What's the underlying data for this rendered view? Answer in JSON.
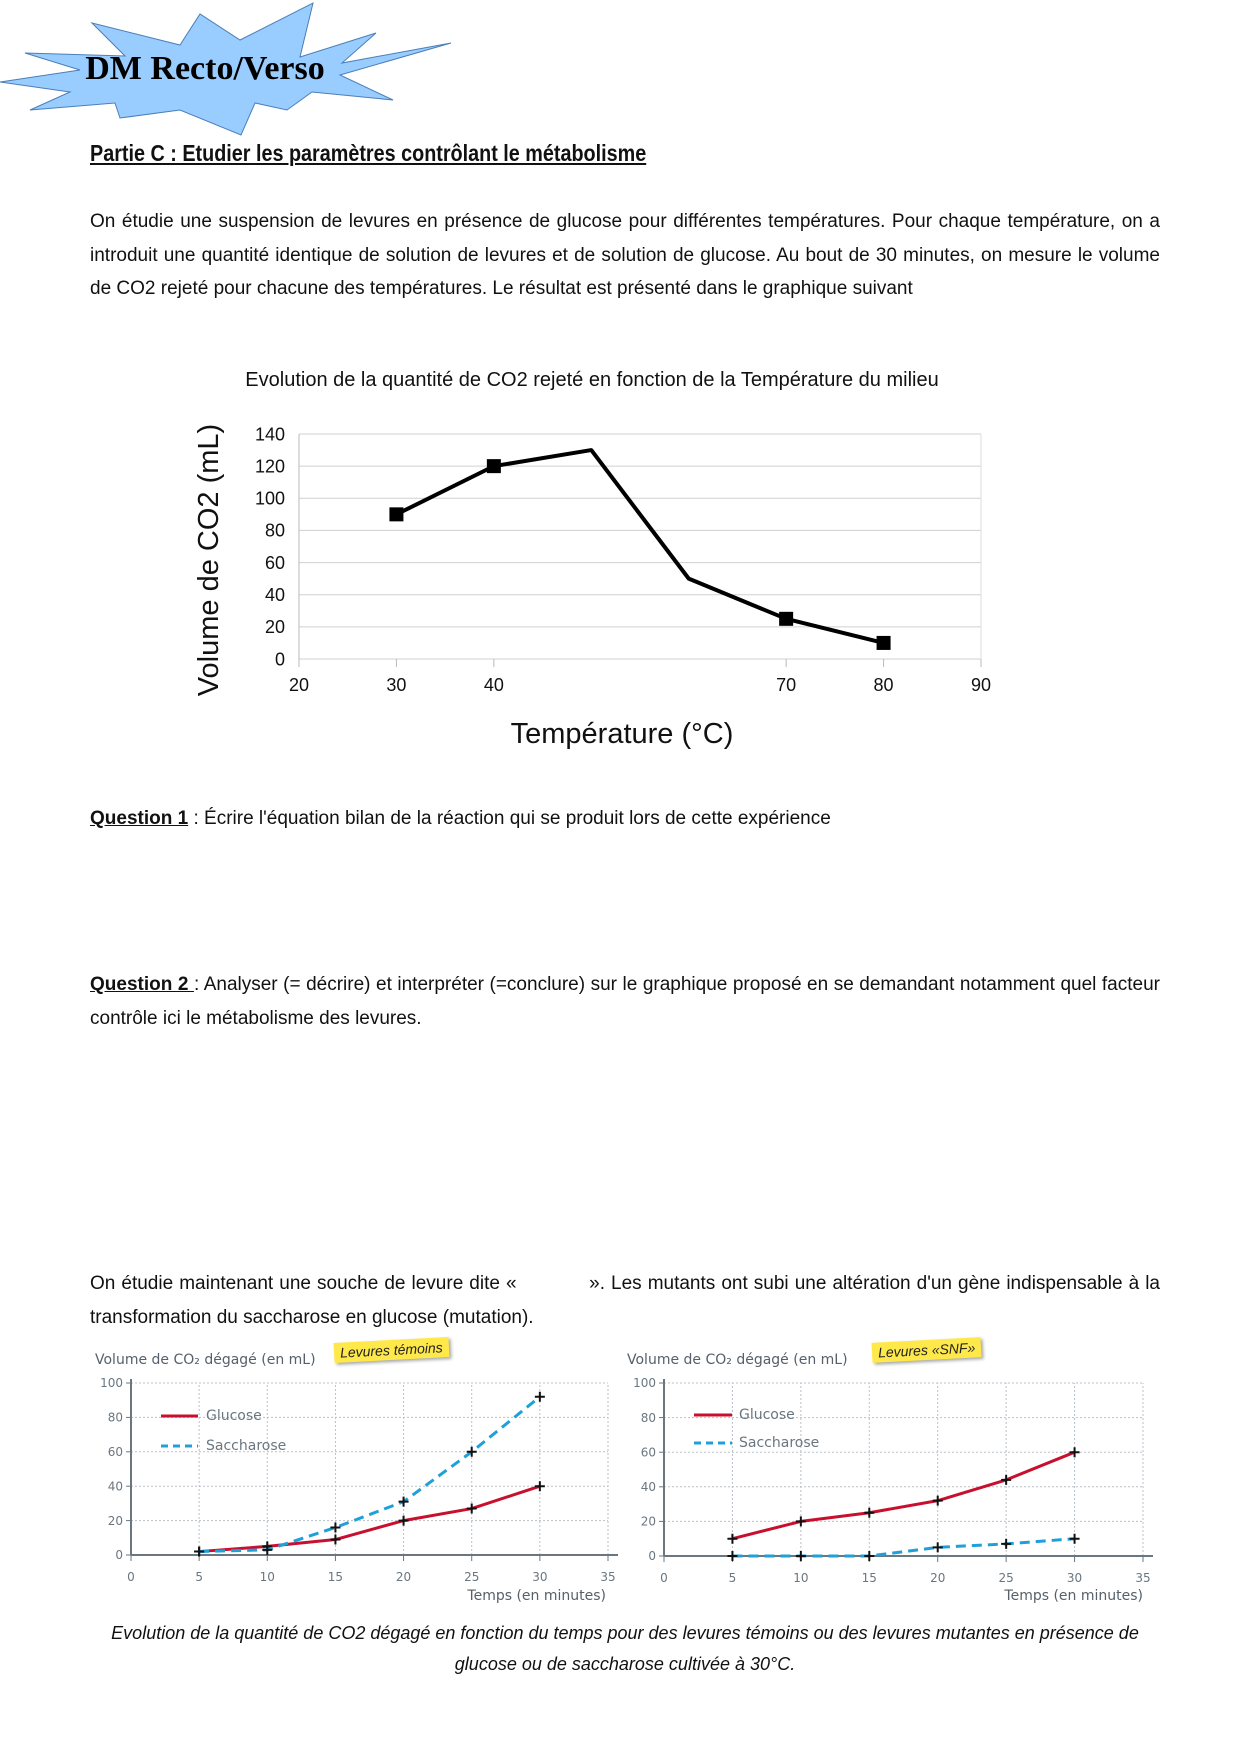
{
  "header": {
    "badge_title": "DM Recto/Verso",
    "badge_color": "#99ccff",
    "heading": "Partie C : Etudier les paramètres contrôlant le métabolisme"
  },
  "intro": "On étudie une suspension de levures en présence de glucose pour différentes températures. Pour chaque température, on a introduit une quantité identique de solution de levures et de solution de glucose. Au bout de 30 minutes, on mesure le volume  de CO2 rejeté pour chacune des températures. Le résultat est présenté dans le graphique suivant",
  "questions": [
    {
      "label": "Question 1",
      "text": " : Écrire l'équation bilan de la réaction qui se produit lors de cette expérience"
    },
    {
      "label": "Question 2 ",
      "text": ": Analyser (= décrire) et interpréter (=conclure) sur le graphique proposé en se demandant notamment quel facteur contrôle ici le métabolisme des levures."
    }
  ],
  "intro2": "On étudie maintenant une souche de levure dite «            ». Les mutants ont subi une altération d'un gène indispensable à la transformation du saccharose en glucose (mutation).",
  "caption": "Evolution de la quantité de CO2 dégagé en fonction du temps pour des levures témoins ou des levures mutantes en présence de glucose ou de saccharose cultivée à 30°C.",
  "chart_data": [
    {
      "type": "line",
      "title": "Evolution de la quantité de CO2 rejeté en fonction de la Température du milieu",
      "xlabel": "Température (°C)",
      "ylabel": "Volume de CO2 (mL)",
      "xlim": [
        20,
        90
      ],
      "ylim": [
        0,
        140
      ],
      "x_ticks": [
        20,
        30,
        40,
        70,
        80,
        90
      ],
      "y_ticks": [
        0,
        20,
        40,
        60,
        80,
        100,
        120,
        140
      ],
      "grid": true,
      "series": [
        {
          "x": [
            30,
            40,
            50,
            60,
            70,
            80
          ],
          "y": [
            90,
            120,
            130,
            50,
            25,
            10
          ],
          "markers_at": [
            30,
            40,
            70,
            80
          ],
          "color": "#000000",
          "style": "solid"
        }
      ]
    },
    {
      "type": "line",
      "title": "Levures témoins",
      "xlabel": "Temps (en minutes)",
      "ylabel": "Volume de CO₂ dégagé (en mL)",
      "xlim": [
        0,
        35
      ],
      "ylim": [
        0,
        100
      ],
      "x_ticks": [
        0,
        5,
        10,
        15,
        20,
        25,
        30,
        35
      ],
      "y_ticks": [
        0,
        20,
        40,
        60,
        80,
        100
      ],
      "grid": true,
      "legend": "top-left",
      "series": [
        {
          "name": "Glucose",
          "x": [
            5,
            10,
            15,
            20,
            25,
            30
          ],
          "y": [
            2,
            5,
            9,
            20,
            27,
            40
          ],
          "color": "#c8102e",
          "style": "solid"
        },
        {
          "name": "Saccharose",
          "x": [
            5,
            10,
            15,
            20,
            25,
            30
          ],
          "y": [
            2,
            3,
            16,
            31,
            60,
            92
          ],
          "color": "#1fa0d8",
          "style": "dashed"
        }
      ]
    },
    {
      "type": "line",
      "title": "Levures «SNF»",
      "xlabel": "Temps (en minutes)",
      "ylabel": "Volume de CO₂ dégagé (en mL)",
      "xlim": [
        0,
        35
      ],
      "ylim": [
        0,
        100
      ],
      "x_ticks": [
        0,
        5,
        10,
        15,
        20,
        25,
        30,
        35
      ],
      "y_ticks": [
        0,
        20,
        40,
        60,
        80,
        100
      ],
      "grid": true,
      "legend": "top-left",
      "series": [
        {
          "name": "Glucose",
          "x": [
            5,
            10,
            15,
            20,
            25,
            30
          ],
          "y": [
            10,
            20,
            25,
            32,
            44,
            60
          ],
          "color": "#c8102e",
          "style": "solid"
        },
        {
          "name": "Saccharose",
          "x": [
            5,
            10,
            15,
            20,
            25,
            30
          ],
          "y": [
            0,
            0,
            0,
            5,
            7,
            10
          ],
          "color": "#1fa0d8",
          "style": "dashed"
        }
      ]
    }
  ]
}
